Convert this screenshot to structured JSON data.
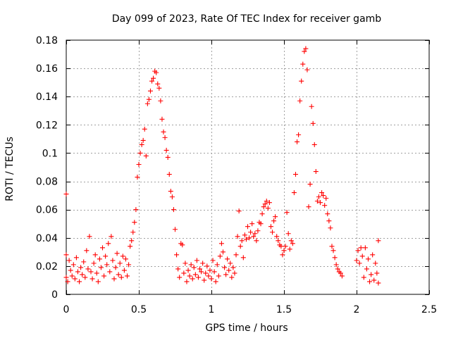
{
  "chart_data": {
    "type": "scatter",
    "title": "Day 099 of 2023, Rate Of TEC Index for receiver gamb",
    "xlabel": "GPS time / hours",
    "ylabel": "ROTI / TECUs",
    "xlim": [
      0,
      2.5
    ],
    "ylim": [
      0,
      0.18
    ],
    "grid": true,
    "marker": "+",
    "x_ticks": [
      0,
      0.5,
      1,
      1.5,
      2,
      2.5
    ],
    "x_tick_labels": [
      "0",
      "0.5",
      "1",
      "1.5",
      "2",
      "2.5"
    ],
    "y_ticks": [
      0,
      0.02,
      0.04,
      0.06,
      0.08,
      0.1,
      0.12,
      0.14,
      0.16,
      0.18
    ],
    "y_tick_labels": [
      "0",
      "0.02",
      "0.04",
      "0.06",
      "0.08",
      "0.1",
      "0.12",
      "0.14",
      "0.16",
      "0.18"
    ],
    "series": [
      {
        "name": "ROTI",
        "color": "#ff0000",
        "points": [
          [
            0.0,
            0.071
          ],
          [
            0.0,
            0.012
          ],
          [
            0.0,
            0.028
          ],
          [
            0.01,
            0.009
          ],
          [
            0.02,
            0.024
          ],
          [
            0.03,
            0.017
          ],
          [
            0.04,
            0.013
          ],
          [
            0.05,
            0.021
          ],
          [
            0.06,
            0.011
          ],
          [
            0.07,
            0.026
          ],
          [
            0.08,
            0.016
          ],
          [
            0.09,
            0.009
          ],
          [
            0.1,
            0.019
          ],
          [
            0.11,
            0.014
          ],
          [
            0.12,
            0.023
          ],
          [
            0.13,
            0.012
          ],
          [
            0.14,
            0.031
          ],
          [
            0.15,
            0.018
          ],
          [
            0.16,
            0.041
          ],
          [
            0.17,
            0.016
          ],
          [
            0.18,
            0.011
          ],
          [
            0.19,
            0.022
          ],
          [
            0.2,
            0.028
          ],
          [
            0.21,
            0.015
          ],
          [
            0.22,
            0.009
          ],
          [
            0.23,
            0.025
          ],
          [
            0.24,
            0.019
          ],
          [
            0.25,
            0.033
          ],
          [
            0.26,
            0.013
          ],
          [
            0.27,
            0.027
          ],
          [
            0.28,
            0.021
          ],
          [
            0.29,
            0.036
          ],
          [
            0.3,
            0.016
          ],
          [
            0.31,
            0.041
          ],
          [
            0.32,
            0.024
          ],
          [
            0.33,
            0.011
          ],
          [
            0.34,
            0.019
          ],
          [
            0.35,
            0.029
          ],
          [
            0.36,
            0.014
          ],
          [
            0.37,
            0.022
          ],
          [
            0.38,
            0.012
          ],
          [
            0.39,
            0.027
          ],
          [
            0.4,
            0.017
          ],
          [
            0.41,
            0.025
          ],
          [
            0.42,
            0.013
          ],
          [
            0.43,
            0.021
          ],
          [
            0.44,
            0.034
          ],
          [
            0.45,
            0.038
          ],
          [
            0.46,
            0.044
          ],
          [
            0.47,
            0.051
          ],
          [
            0.48,
            0.06
          ],
          [
            0.49,
            0.083
          ],
          [
            0.5,
            0.092
          ],
          [
            0.51,
            0.1
          ],
          [
            0.52,
            0.106
          ],
          [
            0.53,
            0.109
          ],
          [
            0.54,
            0.117
          ],
          [
            0.55,
            0.098
          ],
          [
            0.56,
            0.135
          ],
          [
            0.57,
            0.138
          ],
          [
            0.58,
            0.144
          ],
          [
            0.59,
            0.151
          ],
          [
            0.6,
            0.153
          ],
          [
            0.61,
            0.158
          ],
          [
            0.62,
            0.157
          ],
          [
            0.63,
            0.149
          ],
          [
            0.64,
            0.146
          ],
          [
            0.65,
            0.137
          ],
          [
            0.66,
            0.124
          ],
          [
            0.67,
            0.115
          ],
          [
            0.68,
            0.111
          ],
          [
            0.69,
            0.102
          ],
          [
            0.7,
            0.097
          ],
          [
            0.71,
            0.085
          ],
          [
            0.72,
            0.073
          ],
          [
            0.73,
            0.069
          ],
          [
            0.74,
            0.06
          ],
          [
            0.75,
            0.046
          ],
          [
            0.76,
            0.028
          ],
          [
            0.77,
            0.018
          ],
          [
            0.78,
            0.012
          ],
          [
            0.79,
            0.036
          ],
          [
            0.8,
            0.035
          ],
          [
            0.81,
            0.015
          ],
          [
            0.82,
            0.022
          ],
          [
            0.83,
            0.009
          ],
          [
            0.84,
            0.017
          ],
          [
            0.85,
            0.013
          ],
          [
            0.86,
            0.021
          ],
          [
            0.87,
            0.011
          ],
          [
            0.88,
            0.019
          ],
          [
            0.89,
            0.014
          ],
          [
            0.9,
            0.024
          ],
          [
            0.91,
            0.012
          ],
          [
            0.92,
            0.018
          ],
          [
            0.93,
            0.016
          ],
          [
            0.94,
            0.022
          ],
          [
            0.95,
            0.01
          ],
          [
            0.96,
            0.015
          ],
          [
            0.97,
            0.02
          ],
          [
            0.98,
            0.013
          ],
          [
            0.99,
            0.017
          ],
          [
            1.0,
            0.011
          ],
          [
            1.01,
            0.024
          ],
          [
            1.02,
            0.016
          ],
          [
            1.03,
            0.009
          ],
          [
            1.04,
            0.021
          ],
          [
            1.05,
            0.013
          ],
          [
            1.06,
            0.027
          ],
          [
            1.07,
            0.036
          ],
          [
            1.08,
            0.03
          ],
          [
            1.09,
            0.019
          ],
          [
            1.1,
            0.014
          ],
          [
            1.11,
            0.025
          ],
          [
            1.12,
            0.017
          ],
          [
            1.13,
            0.022
          ],
          [
            1.14,
            0.012
          ],
          [
            1.15,
            0.019
          ],
          [
            1.16,
            0.015
          ],
          [
            1.17,
            0.028
          ],
          [
            1.18,
            0.041
          ],
          [
            1.19,
            0.059
          ],
          [
            1.2,
            0.034
          ],
          [
            1.21,
            0.038
          ],
          [
            1.22,
            0.026
          ],
          [
            1.23,
            0.042
          ],
          [
            1.24,
            0.039
          ],
          [
            1.25,
            0.048
          ],
          [
            1.26,
            0.04
          ],
          [
            1.27,
            0.044
          ],
          [
            1.28,
            0.05
          ],
          [
            1.29,
            0.041
          ],
          [
            1.3,
            0.043
          ],
          [
            1.31,
            0.038
          ],
          [
            1.32,
            0.045
          ],
          [
            1.33,
            0.051
          ],
          [
            1.34,
            0.05
          ],
          [
            1.35,
            0.057
          ],
          [
            1.36,
            0.062
          ],
          [
            1.37,
            0.064
          ],
          [
            1.38,
            0.066
          ],
          [
            1.39,
            0.061
          ],
          [
            1.4,
            0.065
          ],
          [
            1.41,
            0.048
          ],
          [
            1.42,
            0.044
          ],
          [
            1.43,
            0.052
          ],
          [
            1.44,
            0.055
          ],
          [
            1.45,
            0.041
          ],
          [
            1.46,
            0.038
          ],
          [
            1.47,
            0.035
          ],
          [
            1.48,
            0.034
          ],
          [
            1.49,
            0.028
          ],
          [
            1.5,
            0.031
          ],
          [
            1.51,
            0.034
          ],
          [
            1.52,
            0.058
          ],
          [
            1.53,
            0.043
          ],
          [
            1.54,
            0.032
          ],
          [
            1.55,
            0.038
          ],
          [
            1.56,
            0.036
          ],
          [
            1.57,
            0.072
          ],
          [
            1.58,
            0.085
          ],
          [
            1.59,
            0.108
          ],
          [
            1.6,
            0.113
          ],
          [
            1.61,
            0.137
          ],
          [
            1.62,
            0.151
          ],
          [
            1.63,
            0.163
          ],
          [
            1.64,
            0.172
          ],
          [
            1.65,
            0.174
          ],
          [
            1.66,
            0.159
          ],
          [
            1.67,
            0.062
          ],
          [
            1.68,
            0.078
          ],
          [
            1.69,
            0.133
          ],
          [
            1.7,
            0.121
          ],
          [
            1.71,
            0.106
          ],
          [
            1.72,
            0.087
          ],
          [
            1.73,
            0.066
          ],
          [
            1.74,
            0.069
          ],
          [
            1.75,
            0.065
          ],
          [
            1.76,
            0.072
          ],
          [
            1.77,
            0.07
          ],
          [
            1.78,
            0.063
          ],
          [
            1.79,
            0.068
          ],
          [
            1.8,
            0.057
          ],
          [
            1.81,
            0.052
          ],
          [
            1.82,
            0.047
          ],
          [
            1.83,
            0.034
          ],
          [
            1.84,
            0.031
          ],
          [
            1.85,
            0.026
          ],
          [
            1.86,
            0.021
          ],
          [
            1.87,
            0.018
          ],
          [
            1.88,
            0.016
          ],
          [
            1.89,
            0.015
          ],
          [
            1.9,
            0.013
          ],
          [
            2.0,
            0.024
          ],
          [
            2.01,
            0.031
          ],
          [
            2.02,
            0.022
          ],
          [
            2.03,
            0.033
          ],
          [
            2.04,
            0.027
          ],
          [
            2.05,
            0.012
          ],
          [
            2.06,
            0.033
          ],
          [
            2.07,
            0.018
          ],
          [
            2.08,
            0.025
          ],
          [
            2.09,
            0.009
          ],
          [
            2.1,
            0.014
          ],
          [
            2.11,
            0.028
          ],
          [
            2.12,
            0.01
          ],
          [
            2.13,
            0.022
          ],
          [
            2.14,
            0.015
          ],
          [
            2.15,
            0.038
          ],
          [
            2.15,
            0.008
          ]
        ]
      }
    ]
  }
}
